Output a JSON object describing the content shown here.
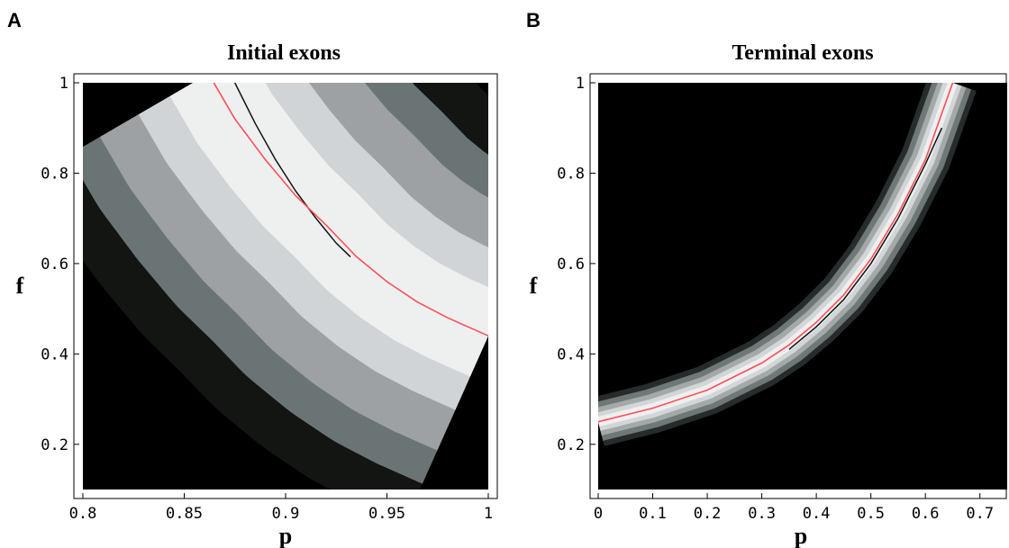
{
  "chart_data": [
    {
      "panel_label": "A",
      "type": "heatmap",
      "title": "Initial exons",
      "xlabel": "p",
      "ylabel": "f",
      "xlim": [
        0.8,
        1.0
      ],
      "ylim": [
        0.1,
        1.0
      ],
      "xticks": [
        "0.8",
        "0.85",
        "0.9",
        "0.95",
        "1"
      ],
      "yticks": [
        "0.2",
        "0.4",
        "0.6",
        "0.8",
        "1"
      ],
      "xtick_values": [
        0.8,
        0.85,
        0.9,
        0.95,
        1.0
      ],
      "ytick_values": [
        0.2,
        0.4,
        0.6,
        0.8,
        1.0
      ],
      "contour_levels": [
        {
          "level": 1,
          "fill": "#121512",
          "band_width": 0.102
        },
        {
          "level": 2,
          "fill": "#6b7474",
          "band_width": 0.08
        },
        {
          "level": 3,
          "fill": "#9da1a3",
          "band_width": 0.062
        },
        {
          "level": 4,
          "fill": "#d1d4d6",
          "band_width": 0.04
        },
        {
          "level": 5,
          "fill": "#eef0f0",
          "band_width": 0.022
        }
      ],
      "background_color": "#000000",
      "ridge_color": "#ff4d5a",
      "ridge_curve": {
        "x": [
          0.862,
          0.875,
          0.89,
          0.905,
          0.92,
          0.935,
          0.95,
          0.965,
          0.98,
          1.0
        ],
        "y": [
          1.02,
          0.92,
          0.83,
          0.75,
          0.685,
          0.615,
          0.56,
          0.515,
          0.48,
          0.44
        ]
      },
      "inner_contour_curve": {
        "x": [
          0.875,
          0.885,
          0.895,
          0.905,
          0.915,
          0.925,
          0.932
        ],
        "y": [
          1.0,
          0.91,
          0.83,
          0.76,
          0.7,
          0.645,
          0.615
        ]
      }
    },
    {
      "panel_label": "B",
      "type": "heatmap",
      "title": "Terminal exons",
      "xlabel": "p",
      "ylabel": "f",
      "xlim": [
        0.0,
        0.75
      ],
      "ylim": [
        0.1,
        1.0
      ],
      "xticks": [
        "0",
        "0.1",
        "0.2",
        "0.3",
        "0.4",
        "0.5",
        "0.6",
        "0.7"
      ],
      "yticks": [
        "0.2",
        "0.4",
        "0.6",
        "0.8",
        "1"
      ],
      "xtick_values": [
        0.0,
        0.1,
        0.2,
        0.3,
        0.4,
        0.5,
        0.6,
        0.7
      ],
      "ytick_values": [
        0.2,
        0.4,
        0.6,
        0.8,
        1.0
      ],
      "contour_levels": [
        {
          "level": 1,
          "fill": "#262b2b",
          "band_width": 0.046
        },
        {
          "level": 2,
          "fill": "#6f7777",
          "band_width": 0.036
        },
        {
          "level": 3,
          "fill": "#a3a8a9",
          "band_width": 0.026
        },
        {
          "level": 4,
          "fill": "#d3d6d7",
          "band_width": 0.017
        },
        {
          "level": 5,
          "fill": "#eef0f0",
          "band_width": 0.009
        }
      ],
      "background_color": "#000000",
      "ridge_color": "#ff4d5a",
      "ridge_curve": {
        "x": [
          0.0,
          0.1,
          0.2,
          0.3,
          0.35,
          0.4,
          0.45,
          0.5,
          0.55,
          0.6,
          0.65
        ],
        "y": [
          0.25,
          0.28,
          0.32,
          0.38,
          0.42,
          0.47,
          0.53,
          0.61,
          0.71,
          0.83,
          1.0
        ]
      },
      "inner_contour_curve": {
        "x": [
          0.35,
          0.4,
          0.45,
          0.5,
          0.55,
          0.6,
          0.63
        ],
        "y": [
          0.41,
          0.46,
          0.52,
          0.6,
          0.7,
          0.82,
          0.9
        ]
      }
    }
  ]
}
